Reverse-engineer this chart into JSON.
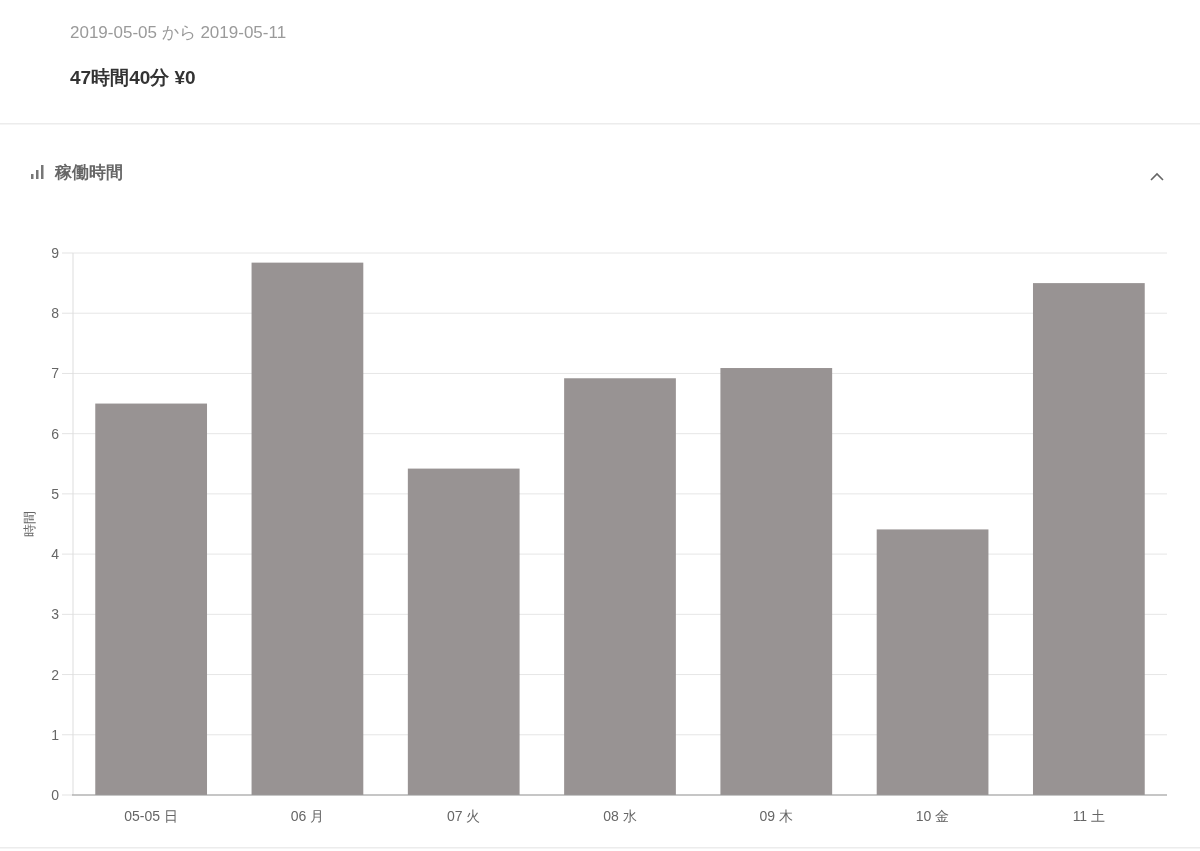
{
  "chart_data": {
    "type": "bar",
    "title": "稼働時間",
    "annotations": [
      "2019-05-05 から 2019-05-11",
      "47時間40分 ¥0"
    ],
    "categories": [
      "05-05 日",
      "06 月",
      "07 火",
      "08 水",
      "09 木",
      "10 金",
      "11 土"
    ],
    "values": [
      6.5,
      8.84,
      5.42,
      6.92,
      7.09,
      4.41,
      8.5
    ],
    "color": "#989393",
    "ylabel": "時間",
    "ylim": [
      0,
      9
    ],
    "yticks": [
      0,
      1,
      2,
      3,
      4,
      5,
      6,
      7,
      8,
      9
    ],
    "grid": "y"
  }
}
